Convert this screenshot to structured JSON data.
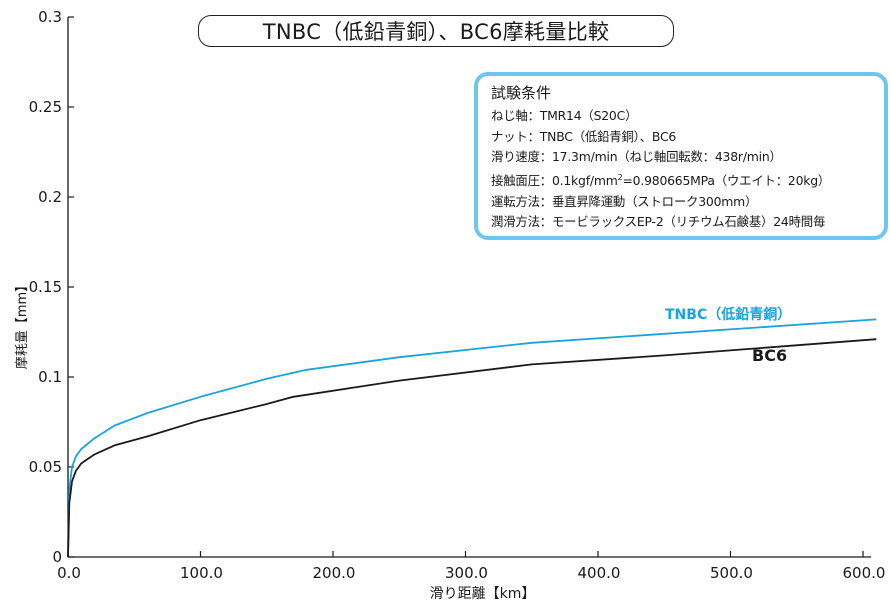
{
  "chart_data": {
    "type": "line",
    "title": "TNBC（低鉛青銅）、BC6摩耗量比較",
    "xlabel": "滑り距離【km】",
    "ylabel": "摩耗量【mm】",
    "xlim": [
      0,
      600
    ],
    "ylim": [
      0,
      0.3
    ],
    "x_ticks": [
      "0.0",
      "100.0",
      "200.0",
      "300.0",
      "400.0",
      "500.0",
      "600.0"
    ],
    "y_ticks": [
      "0",
      "0.05",
      "0.1",
      "0.15",
      "0.2",
      "0.25",
      "0.3"
    ],
    "grid": false,
    "series": [
      {
        "name": "TNBC（低鉛青銅）",
        "color": "#1aa3dc",
        "x": [
          0,
          1,
          3,
          6,
          10,
          20,
          35,
          60,
          100,
          150,
          180,
          250,
          350,
          450,
          610
        ],
        "y": [
          0,
          0.038,
          0.05,
          0.056,
          0.06,
          0.066,
          0.073,
          0.08,
          0.089,
          0.099,
          0.104,
          0.111,
          0.119,
          0.124,
          0.132
        ]
      },
      {
        "name": "BC6",
        "color": "#1a1a1a",
        "x": [
          0,
          1,
          3,
          6,
          10,
          20,
          35,
          60,
          100,
          150,
          170,
          250,
          350,
          450,
          610
        ],
        "y": [
          0,
          0.03,
          0.042,
          0.048,
          0.052,
          0.057,
          0.062,
          0.067,
          0.076,
          0.085,
          0.089,
          0.098,
          0.107,
          0.112,
          0.121
        ]
      }
    ]
  },
  "conditions": {
    "title": "試験条件",
    "screw_shaft": "ねじ軸：TMR14（S20C）",
    "nut": "ナット：TNBC（低鉛青銅）、BC6",
    "speed": "滑り速度：17.3m/min（ねじ軸回転数：438r/min）",
    "pressure_pre": "接触面圧：0.1kgf/mm",
    "pressure_sup": "2",
    "pressure_post": "=0.980665MPa（ウエイト：20kg）",
    "method": "運転方法：垂直昇降運動（ストローク300mm）",
    "lubrication": "潤滑方法：モービラックスEP-2（リチウム石鹸基）24時間毎"
  }
}
